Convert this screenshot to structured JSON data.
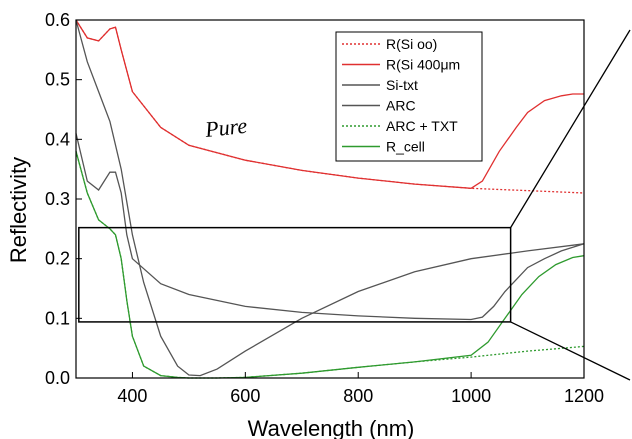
{
  "chart_data": {
    "type": "line",
    "title": "",
    "xlabel": "Wavelength (nm)",
    "ylabel": "Reflectivity",
    "xlim": [
      300,
      1200
    ],
    "ylim": [
      0.0,
      0.6
    ],
    "xticks": [
      400,
      600,
      800,
      1000,
      1200
    ],
    "yticks": [
      0.0,
      0.1,
      0.2,
      0.3,
      0.4,
      0.5,
      0.6
    ],
    "xtick_labels": [
      "400",
      "600",
      "800",
      "1000",
      "1200"
    ],
    "ytick_labels": [
      "0.0",
      "0.1",
      "0.2",
      "0.3",
      "0.4",
      "0.5",
      "0.6"
    ],
    "grid": false,
    "legend_position": "top-right",
    "annotation": "Pure",
    "highlight_box": {
      "x": [
        305,
        1070
      ],
      "y": [
        0.094,
        0.252
      ]
    },
    "series": [
      {
        "name": "R(Si oo)",
        "color": "#e03030",
        "dash": "dotted",
        "x": [
          300,
          320,
          340,
          360,
          370,
          380,
          400,
          450,
          500,
          600,
          700,
          800,
          900,
          1000,
          1050,
          1100,
          1150,
          1200
        ],
        "y": [
          0.6,
          0.57,
          0.565,
          0.585,
          0.588,
          0.55,
          0.48,
          0.42,
          0.39,
          0.365,
          0.348,
          0.335,
          0.325,
          0.318,
          0.316,
          0.314,
          0.312,
          0.31
        ]
      },
      {
        "name": "R(Si 400μm",
        "color": "#e03030",
        "dash": "solid",
        "x": [
          300,
          320,
          340,
          360,
          370,
          380,
          400,
          450,
          500,
          600,
          700,
          800,
          900,
          1000,
          1020,
          1050,
          1080,
          1100,
          1130,
          1160,
          1180,
          1200
        ],
        "y": [
          0.6,
          0.57,
          0.565,
          0.585,
          0.588,
          0.55,
          0.48,
          0.42,
          0.39,
          0.365,
          0.348,
          0.335,
          0.325,
          0.318,
          0.33,
          0.38,
          0.42,
          0.445,
          0.465,
          0.473,
          0.476,
          0.476
        ]
      },
      {
        "name": "Si-txt",
        "color": "#555555",
        "dash": "solid",
        "x": [
          300,
          320,
          340,
          360,
          370,
          380,
          390,
          400,
          450,
          500,
          600,
          700,
          800,
          900,
          1000,
          1020,
          1040,
          1060,
          1080,
          1100,
          1130,
          1160,
          1200
        ],
        "y": [
          0.41,
          0.33,
          0.315,
          0.345,
          0.345,
          0.31,
          0.24,
          0.2,
          0.158,
          0.14,
          0.12,
          0.11,
          0.104,
          0.1,
          0.098,
          0.102,
          0.12,
          0.145,
          0.165,
          0.185,
          0.2,
          0.213,
          0.225
        ]
      },
      {
        "name": "ARC",
        "color": "#555555",
        "dash": "solid",
        "x": [
          300,
          320,
          340,
          360,
          380,
          400,
          420,
          450,
          480,
          500,
          520,
          550,
          600,
          700,
          800,
          900,
          1000,
          1100,
          1200
        ],
        "y": [
          0.6,
          0.53,
          0.48,
          0.43,
          0.35,
          0.24,
          0.16,
          0.07,
          0.02,
          0.005,
          0.004,
          0.015,
          0.045,
          0.1,
          0.145,
          0.178,
          0.2,
          0.213,
          0.225
        ]
      },
      {
        "name": "ARC + TXT",
        "color": "#2e9a2e",
        "dash": "dotted",
        "x": [
          300,
          320,
          340,
          360,
          370,
          380,
          390,
          400,
          420,
          450,
          480,
          500,
          550,
          600,
          700,
          800,
          900,
          1000,
          1050,
          1100,
          1150,
          1200
        ],
        "y": [
          0.38,
          0.31,
          0.265,
          0.25,
          0.24,
          0.2,
          0.13,
          0.07,
          0.02,
          0.004,
          0.001,
          0.0,
          0.0,
          0.001,
          0.008,
          0.018,
          0.027,
          0.035,
          0.04,
          0.045,
          0.049,
          0.053
        ]
      },
      {
        "name": "R_cell",
        "color": "#2e9a2e",
        "dash": "solid",
        "x": [
          300,
          320,
          340,
          360,
          370,
          380,
          390,
          400,
          420,
          450,
          480,
          500,
          550,
          600,
          700,
          800,
          900,
          1000,
          1030,
          1060,
          1090,
          1120,
          1150,
          1180,
          1200
        ],
        "y": [
          0.38,
          0.31,
          0.265,
          0.25,
          0.24,
          0.2,
          0.13,
          0.07,
          0.02,
          0.004,
          0.001,
          0.0,
          0.0,
          0.001,
          0.008,
          0.018,
          0.027,
          0.038,
          0.06,
          0.1,
          0.14,
          0.17,
          0.19,
          0.202,
          0.205
        ]
      }
    ]
  }
}
